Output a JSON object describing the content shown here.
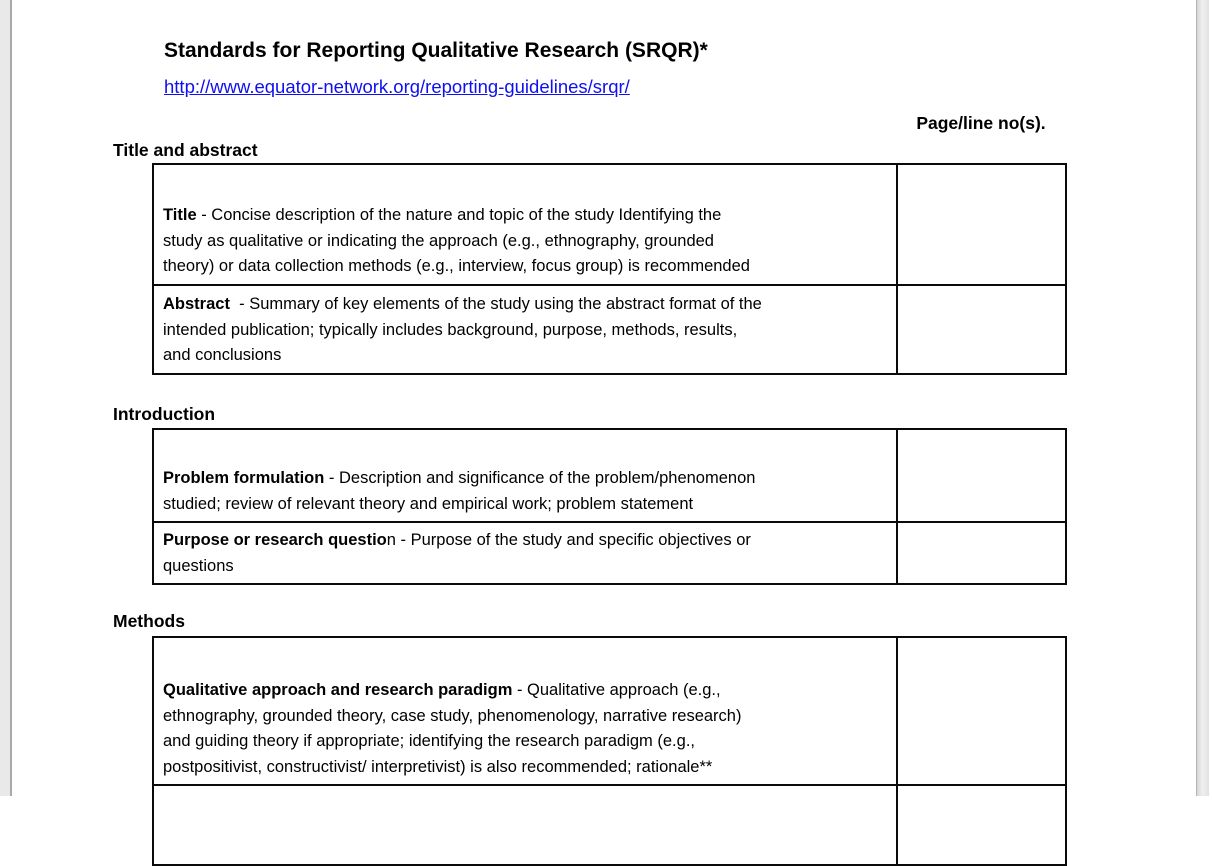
{
  "header": {
    "title": "Standards for Reporting Qualitative Research (SRQR)*",
    "link": "http://www.equator-network.org/reporting-guidelines/srqr/",
    "link_color": "#0f0ff0",
    "column_header": "Page/line no(s)."
  },
  "sections": [
    {
      "heading": "Title and abstract",
      "rows": [
        {
          "term": "Title",
          "desc": " - Concise description of the nature and topic of the study Identifying the\nstudy as qualitative or indicating the approach (e.g., ethnography, grounded\ntheory) or data collection methods (e.g., interview, focus group) is recommended",
          "page_no": ""
        },
        {
          "term": "Abstract ",
          "desc": " - Summary of key elements of the study using the abstract format of the\nintended publication; typically includes background, purpose, methods, results,\nand conclusions",
          "page_no": ""
        }
      ]
    },
    {
      "heading": "Introduction",
      "rows": [
        {
          "term": "Problem formulation",
          "desc": " - Description and significance of the problem/phenomenon\nstudied; review of relevant theory and empirical work; problem statement",
          "page_no": ""
        },
        {
          "term": "Purpose or research questio",
          "desc": "n - Purpose of the study and specific objectives or\nquestions",
          "page_no": ""
        }
      ]
    },
    {
      "heading": "Methods",
      "rows": [
        {
          "term": "Qualitative approach and research paradigm",
          "desc": " - Qualitative approach (e.g.,\nethnography, grounded theory, case study, phenomenology, narrative research)\nand guiding theory if appropriate; identifying the research paradigm (e.g.,\npostpositivist, constructivist/ interpretivist) is also recommended; rationale**",
          "page_no": ""
        },
        {
          "term": "",
          "desc": "",
          "page_no": ""
        }
      ]
    }
  ]
}
